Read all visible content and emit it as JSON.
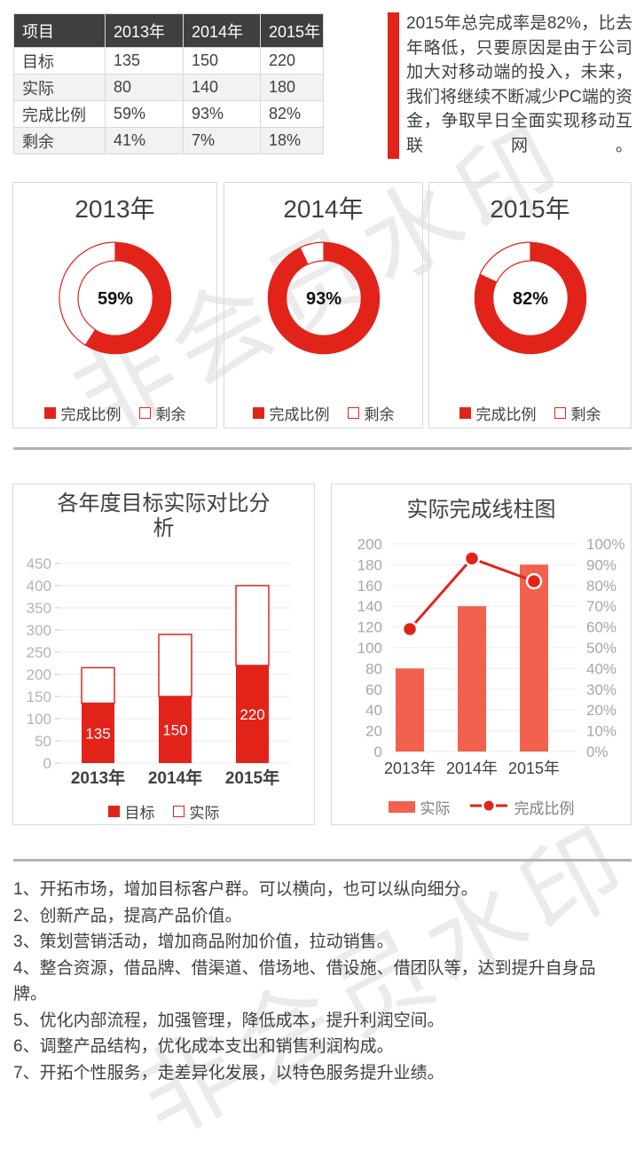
{
  "watermark": {
    "text": "非会员水印",
    "color": "#ebebeb"
  },
  "colors": {
    "accent_red": "#e2231a",
    "salmon": "#f1614e",
    "table_header_bg": "#3f3f3f",
    "divider_gray": "#b3b3b3"
  },
  "table": {
    "headers": [
      "项目",
      "2013年",
      "2014年",
      "2015年"
    ],
    "rows": [
      {
        "label": "目标",
        "values": [
          "135",
          "150",
          "220"
        ]
      },
      {
        "label": "实际",
        "values": [
          "80",
          "140",
          "180"
        ]
      },
      {
        "label": "完成比例",
        "values": [
          "59%",
          "93%",
          "82%"
        ]
      },
      {
        "label": "剩余",
        "values": [
          "41%",
          "7%",
          "18%"
        ]
      }
    ]
  },
  "summary": {
    "text": "2015年总完成率是82%，比去年略低，只要原因是由于公司加大对移动端的投入，未来，我们将继续不断减少PC端的资金，争取早日全面实现移动互联网。"
  },
  "chart_data": [
    {
      "type": "donut",
      "title": "2013年",
      "center_label": "59%",
      "legend_position": "bottom",
      "series": [
        {
          "name": "完成比例",
          "value": 59,
          "color": "#e2231a"
        },
        {
          "name": "剩余",
          "value": 41,
          "color": "#ffffff"
        }
      ]
    },
    {
      "type": "donut",
      "title": "2014年",
      "center_label": "93%",
      "legend_position": "bottom",
      "series": [
        {
          "name": "完成比例",
          "value": 93,
          "color": "#e2231a"
        },
        {
          "name": "剩余",
          "value": 7,
          "color": "#ffffff"
        }
      ]
    },
    {
      "type": "donut",
      "title": "2015年",
      "center_label": "82%",
      "legend_position": "bottom",
      "series": [
        {
          "name": "完成比例",
          "value": 82,
          "color": "#e2231a"
        },
        {
          "name": "剩余",
          "value": 18,
          "color": "#ffffff"
        }
      ]
    },
    {
      "type": "bar",
      "subtype": "stacked",
      "title": "各年度目标实际对比分析",
      "categories": [
        "2013年",
        "2014年",
        "2015年"
      ],
      "series": [
        {
          "name": "目标",
          "values": [
            135,
            150,
            220
          ],
          "color": "#e2231a"
        },
        {
          "name": "实际",
          "values": [
            80,
            140,
            180
          ],
          "color": "#ffffff"
        }
      ],
      "bar_labels": [
        "135",
        "150",
        "220"
      ],
      "ylim": [
        0,
        450
      ],
      "ytick_step": 50,
      "grid": true,
      "legend_position": "bottom"
    },
    {
      "type": "combo",
      "title": "实际完成线柱图",
      "categories": [
        "2013年",
        "2014年",
        "2015年"
      ],
      "bar_series": {
        "name": "实际",
        "values": [
          80,
          140,
          180
        ],
        "color": "#f1614e"
      },
      "line_series": {
        "name": "完成比例",
        "values": [
          59,
          93,
          82
        ],
        "unit": "%",
        "color": "#e2231a"
      },
      "ylim_left": [
        0,
        200
      ],
      "ytick_left_step": 20,
      "ylim_right": [
        0,
        100
      ],
      "ytick_right_step": 10,
      "grid": true,
      "legend_position": "bottom"
    }
  ],
  "notes": [
    "1、开拓市场，增加目标客户群。可以横向，也可以纵向细分。",
    "2、创新产品，提高产品价值。",
    "3、策划营销活动，增加商品附加价值，拉动销售。",
    "4、整合资源，借品牌、借渠道、借场地、借设施、借团队等，达到提升自身品牌。",
    "5、优化内部流程，加强管理，降低成本，提升利润空间。",
    "6、调整产品结构，优化成本支出和销售利润构成。",
    "7、开拓个性服务，走差异化发展，以特色服务提升业绩。"
  ]
}
